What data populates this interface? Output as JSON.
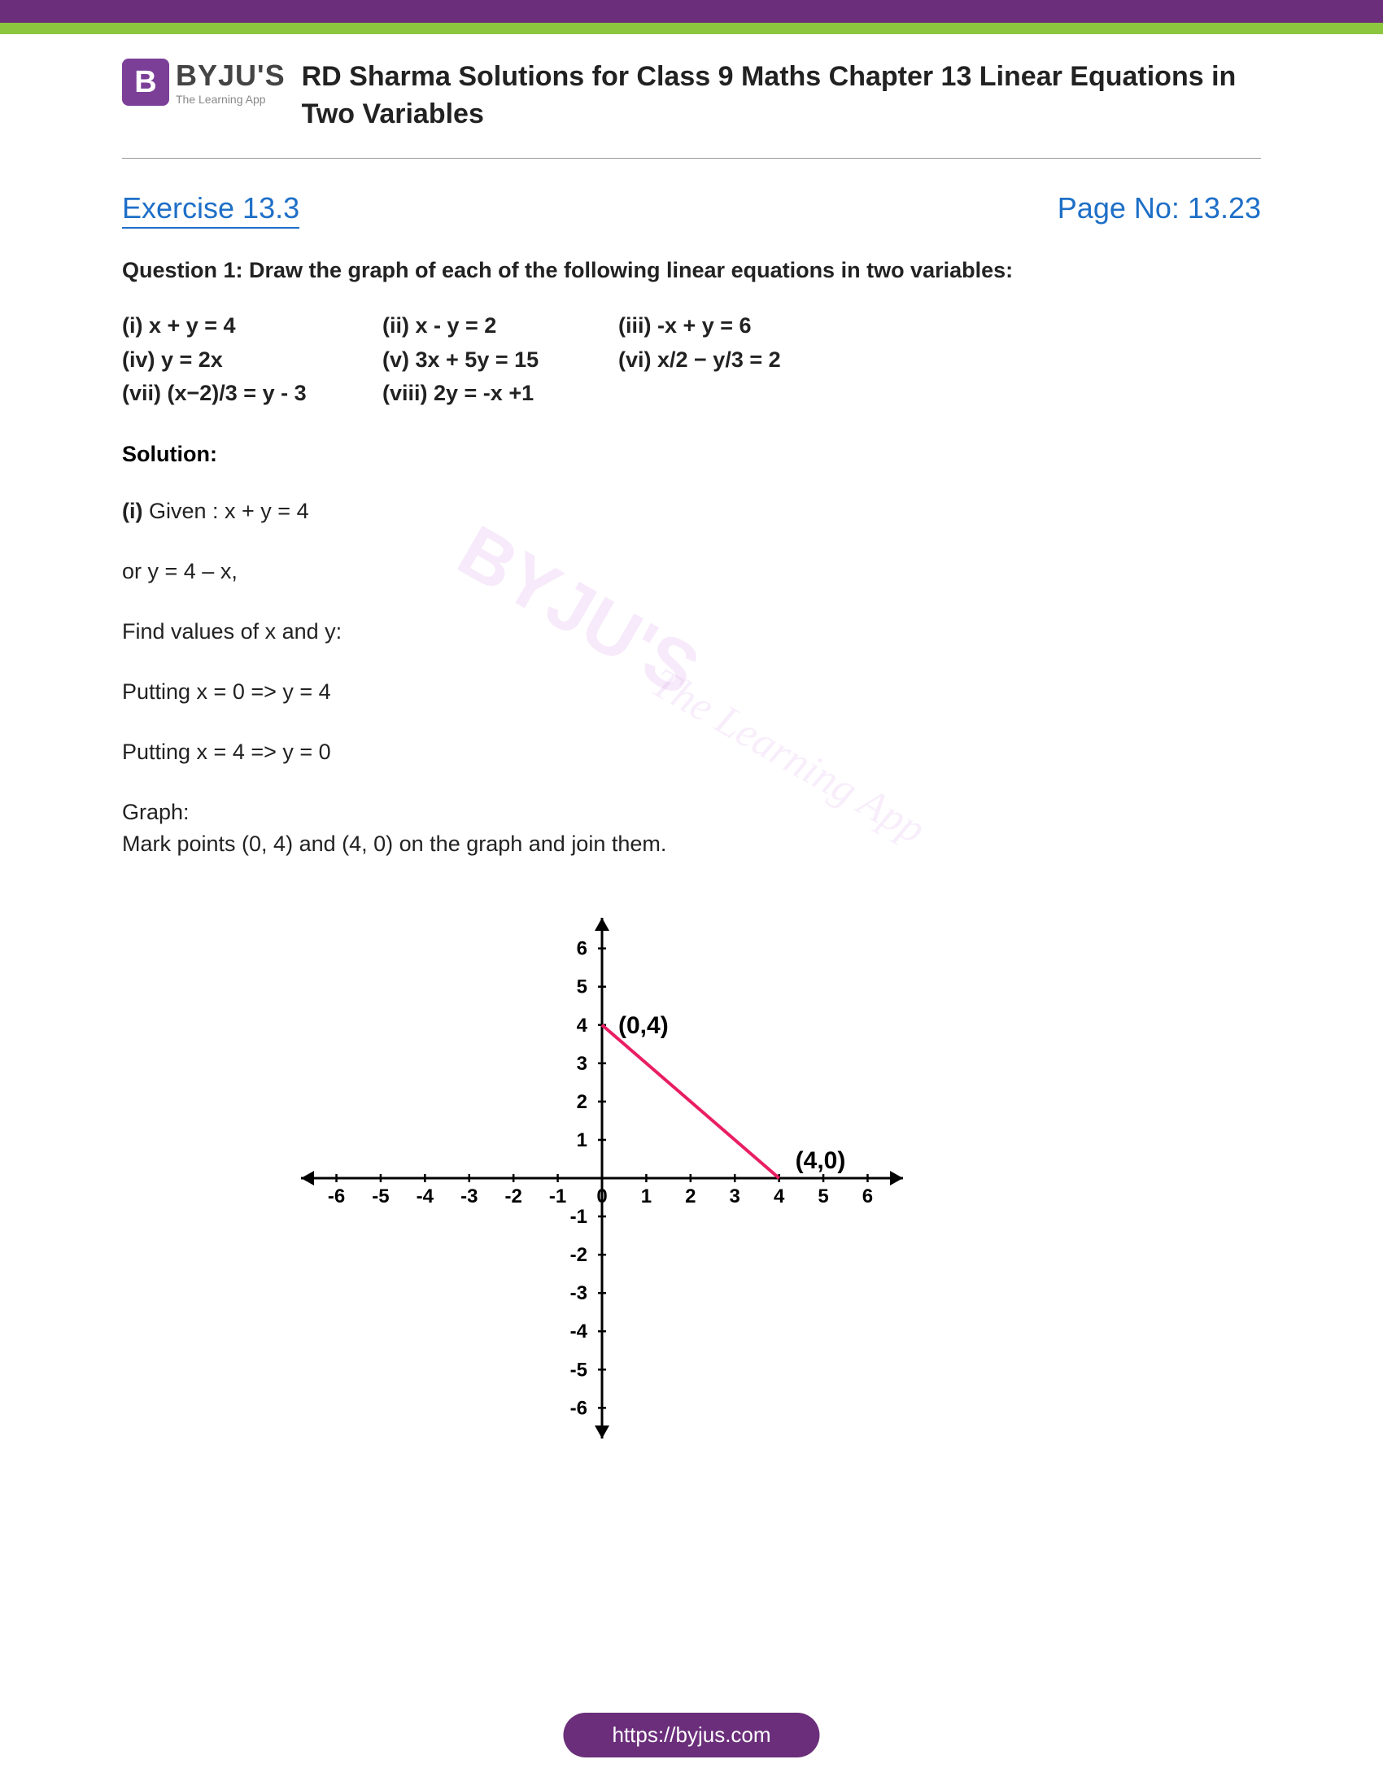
{
  "topbar": {
    "purple": "#6b2e7a",
    "green": "#8cc63f"
  },
  "logo": {
    "icon": "B",
    "main": "BYJU'S",
    "sub": "The Learning App"
  },
  "title": "RD Sharma Solutions for Class 9 Maths Chapter 13 Linear Equations in Two Variables",
  "exercise": "Exercise 13.3",
  "page_no": "Page No: 13.23",
  "question": "Question 1: Draw the graph of each of the following linear equations in two variables:",
  "equations": {
    "row1": {
      "a": "(i) x + y = 4",
      "b": "(ii) x - y = 2",
      "c": "(iii) -x + y = 6"
    },
    "row2": {
      "a": "(iv) y = 2x",
      "b": "(v) 3x + 5y = 15",
      "c": "(vi) x/2 − y/3 = 2"
    },
    "row3": {
      "a": "(vii) (x−2)/3 = y - 3",
      "b": "(viii) 2y = -x +1"
    }
  },
  "solution_label": "Solution:",
  "sol_i_label": "(i)",
  "sol_i_given": " Given : x + y = 4",
  "sol_or": "or  y = 4 – x,",
  "sol_find": "Find values of x and y:",
  "sol_put1": "Putting x = 0 =>  y = 4",
  "sol_put2": "Putting x = 4 =>  y = 0",
  "sol_graph_label": "Graph:",
  "sol_graph_desc": "Mark points (0, 4) and (4, 0) on the graph and join them.",
  "chart": {
    "type": "line",
    "points": [
      {
        "x": 0,
        "y": 4
      },
      {
        "x": 4,
        "y": 0
      }
    ],
    "point_labels": [
      "(0,4)",
      "(4,0)"
    ],
    "xlim": [
      -6.8,
      6.8
    ],
    "ylim": [
      -6.8,
      6.8
    ],
    "xticks": [
      -6,
      -5,
      -4,
      -3,
      -2,
      -1,
      0,
      1,
      2,
      3,
      4,
      5,
      6
    ],
    "yticks": [
      -6,
      -5,
      -4,
      -3,
      -2,
      -1,
      1,
      2,
      3,
      4,
      5,
      6
    ],
    "line_color": "#e91e63",
    "line_width": 4,
    "axis_color": "#000000",
    "axis_width": 3,
    "tick_length": 10,
    "tick_fontsize": 24,
    "label_fontsize": 30,
    "label_fontweight": "bold",
    "background": "#ffffff"
  },
  "watermark_main": "BYJU'S",
  "watermark_sub": "The Learning App",
  "footer": "https://byjus.com"
}
